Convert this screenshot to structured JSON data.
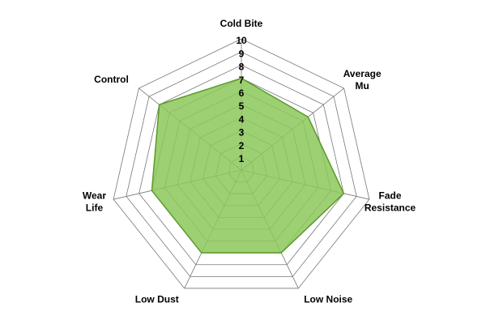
{
  "chart_data": {
    "type": "radar",
    "categories": [
      "Cold Bite",
      "Average\nMu",
      "Fade\nResistance",
      "Low Noise",
      "Low Dust",
      "Wear\nLife",
      "Control"
    ],
    "values": [
      7,
      6.5,
      8,
      7,
      7,
      7,
      8
    ],
    "color": "#8cc85a",
    "line_color": "#5a9a2a",
    "rlim": [
      0,
      10
    ],
    "rticks": [
      1,
      2,
      3,
      4,
      5,
      6,
      7,
      8,
      9,
      10
    ],
    "grid": true
  }
}
